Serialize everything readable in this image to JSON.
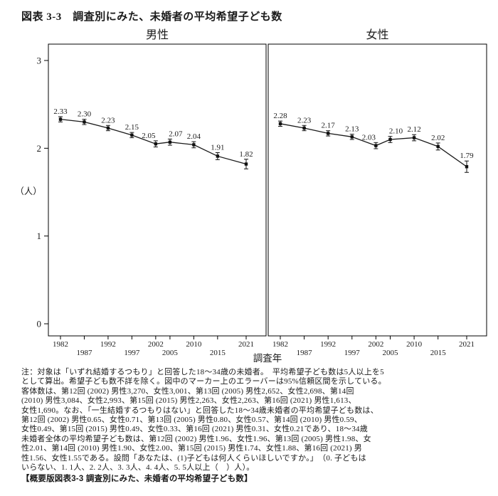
{
  "title": "図表 3-3　調査別にみた、未婚者の平均希望子ども数",
  "chart_data": {
    "type": "line",
    "x": [
      1982,
      1987,
      1992,
      1997,
      2002,
      2005,
      2010,
      2015,
      2021
    ],
    "x_tick_labels": [
      "1982",
      "1987",
      "1992",
      "1997",
      "2002",
      "2005",
      "2010",
      "2015",
      "2021"
    ],
    "xlabel": "調査年",
    "ylabel": "（人）",
    "yticks": [
      "0",
      "1",
      "2",
      "3"
    ],
    "ylim": [
      -0.14,
      3.19
    ],
    "grid": false,
    "legend": "none",
    "line_color": "#1a1a1a",
    "panels": [
      {
        "title": "男性",
        "values": [
          2.33,
          2.3,
          2.23,
          2.15,
          2.05,
          2.07,
          2.04,
          1.91,
          1.82
        ],
        "ci": [
          0.03,
          0.03,
          0.03,
          0.03,
          0.035,
          0.035,
          0.035,
          0.04,
          0.055
        ]
      },
      {
        "title": "女性",
        "values": [
          2.28,
          2.23,
          2.17,
          2.13,
          2.03,
          2.1,
          2.12,
          2.02,
          1.79
        ],
        "ci": [
          0.03,
          0.03,
          0.03,
          0.03,
          0.035,
          0.035,
          0.035,
          0.04,
          0.065
        ]
      }
    ]
  },
  "notes": {
    "lines": [
      "注：対象は「いずれ結婚するつもり」と回答した18〜34歳の未婚者。　平均希望子ども数は5人以上を5",
      "として算出。希望子ども数不詳を除く。図中のマーカー上のエラーバーは95%信頼区間を示している。",
      "客体数は、第12回 (2002) 男性3,270、女性3,001、第13回 (2005) 男性2,652、女性2,698、第14回",
      "(2010) 男性3,084、女性2,993、第15回 (2015) 男性2,263、女性2,263、第16回 (2021) 男性1,613、",
      "女性1,690。なお、「一生結婚するつもりはない」と回答した18〜34歳未婚者の平均希望子ども数は、",
      "第12回 (2002) 男性0.65、女性0.71、第13回 (2005) 男性0.80、女性0.57、第14回 (2010) 男性0.59、",
      "女性0.49、第15回 (2015) 男性0.49、女性0.33、第16回 (2021) 男性0.31、女性0.21であり、18〜34歳",
      "未婚者全体の平均希望子ども数は、第12回 (2002) 男性1.96、女性1.96、第13回 (2005) 男性1.98、女",
      "性2.01、第14回 (2010) 男性1.90、女性2.00、第15回 (2015) 男性1.74、女性1.88、第16回 (2021) 男",
      "性1.56、女性1.55である。設問「あなたは、(1)子どもは何人くらいほしいですか。」　（0. 子どもは",
      "いらない、1. 1人、2. 2人、3. 3人、4. 4人、5. 5人以上（　）人）。"
    ]
  },
  "caption": "【概要版図表3-3 調査別にみた、未婚者の平均希望子ども数】"
}
